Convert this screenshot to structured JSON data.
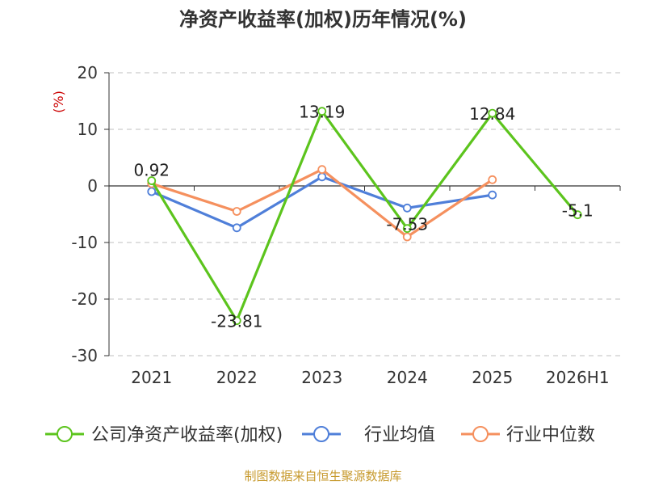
{
  "title": "净资产收益率(加权)历年情况(%)",
  "source_note": "制图数据来自恒生聚源数据库",
  "y_unit": "(%)",
  "colors": {
    "company": "#5cc41d",
    "industry_avg": "#4f7fd9",
    "industry_median": "#f5905e",
    "grid": "#cccccc",
    "axis": "#333333",
    "text": "#333333",
    "unit": "#cc0000",
    "source": "#c79a2e"
  },
  "chart_data": {
    "type": "line",
    "title": "净资产收益率(加权)历年情况(%)",
    "categories": [
      "2021",
      "2022",
      "2023",
      "2024",
      "2025",
      "2026H1"
    ],
    "ylim": [
      -30,
      20
    ],
    "yticks": [
      20,
      10,
      0,
      -10,
      -20,
      -30
    ],
    "ylabel": "(%)",
    "grid": true,
    "legend_position": "bottom",
    "series": [
      {
        "name": "公司净资产收益率(加权)",
        "color": "#5cc41d",
        "values": [
          0.92,
          -23.81,
          13.19,
          -7.53,
          12.84,
          -5.1
        ],
        "labels": [
          "0.92",
          "-23.81",
          "13.19",
          "-7.53",
          "12.84",
          "-5.1"
        ]
      },
      {
        "name": "行业均值",
        "color": "#4f7fd9",
        "values": [
          -1.0,
          -7.4,
          1.6,
          -3.9,
          -1.6,
          null
        ]
      },
      {
        "name": "行业中位数",
        "color": "#f5905e",
        "values": [
          0.4,
          -4.5,
          2.9,
          -9.0,
          1.1,
          null
        ]
      }
    ]
  }
}
